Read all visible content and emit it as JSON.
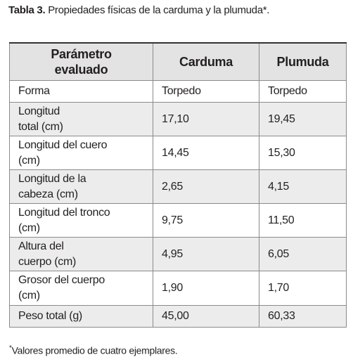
{
  "caption": {
    "label": "Tabla 3.",
    "text": "Propiedades físicas de la carduma y la plumuda*."
  },
  "table": {
    "header": [
      "Parámetro\nevaluado",
      "Carduma",
      "Plumuda"
    ],
    "rows": [
      [
        "Forma",
        "Torpedo",
        "Torpedo"
      ],
      [
        "Longitud\ntotal (cm)",
        "17,10",
        "19,45"
      ],
      [
        "Longitud del cuero\n(cm)",
        "14,45",
        "15,30"
      ],
      [
        "Longitud de la\ncabeza (cm)",
        "2,65",
        "4,15"
      ],
      [
        "Longitud del tronco\n(cm)",
        "9,75",
        "11,50"
      ],
      [
        "Altura del\ncuerpo (cm)",
        "4,95",
        "6,05"
      ],
      [
        "Grosor del cuerpo\n(cm)",
        "1,90",
        "1,70"
      ],
      [
        "Peso total (g)",
        "45,00",
        "60,33"
      ]
    ]
  },
  "footnote": {
    "mark": "*",
    "text": "Valores promedio de cuatro ejemplares."
  }
}
